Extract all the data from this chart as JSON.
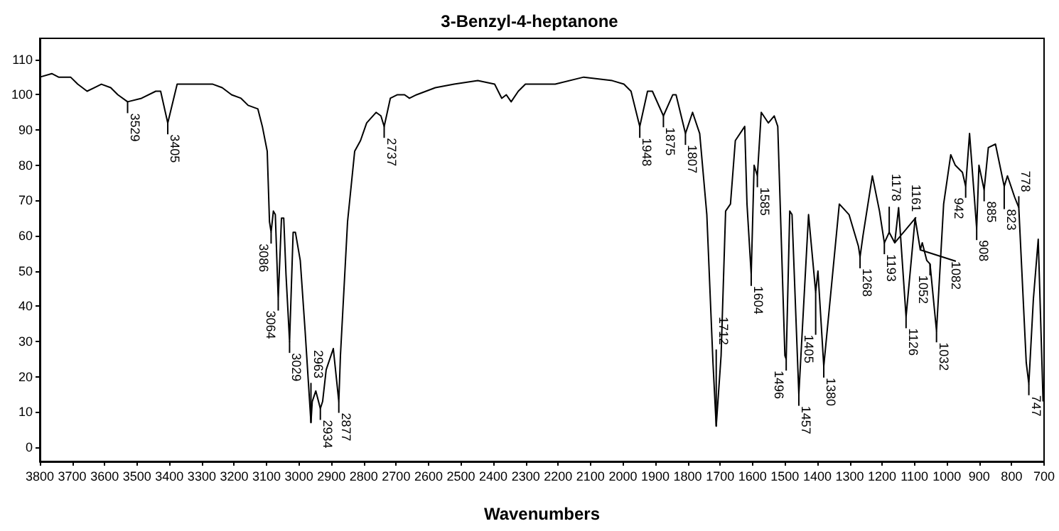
{
  "chart_data": {
    "type": "line",
    "title": "3-Benzyl-4-heptanone",
    "xlabel": "Wavenumbers",
    "xlim": [
      3800,
      700
    ],
    "xticks": [
      3800,
      3700,
      3600,
      3500,
      3400,
      3300,
      3200,
      3100,
      3000,
      2900,
      2800,
      2700,
      2600,
      2500,
      2400,
      2300,
      2200,
      2100,
      2000,
      1900,
      1800,
      1700,
      1600,
      1500,
      1400,
      1300,
      1200,
      1100,
      1000,
      900,
      800,
      700
    ],
    "ylim": [
      -4,
      116
    ],
    "yticks": [
      0,
      10,
      20,
      30,
      40,
      50,
      60,
      70,
      80,
      90,
      100,
      110
    ],
    "grid": false,
    "marker": "none",
    "line_style": "solid",
    "series": [
      {
        "color": "#000000",
        "x": [
          3800,
          3763,
          3742,
          3705,
          3683,
          3654,
          3632,
          3610,
          3581,
          3559,
          3529,
          3486,
          3442,
          3427,
          3405,
          3376,
          3361,
          3266,
          3237,
          3208,
          3179,
          3157,
          3127,
          3113,
          3098,
          3091,
          3086,
          3079,
          3073,
          3064,
          3054,
          3047,
          3040,
          3029,
          3018,
          3011,
          2996,
          2981,
          2963,
          2959,
          2948,
          2934,
          2927,
          2916,
          2894,
          2877,
          2872,
          2850,
          2828,
          2810,
          2791,
          2762,
          2747,
          2737,
          2718,
          2696,
          2674,
          2659,
          2637,
          2608,
          2579,
          2521,
          2448,
          2396,
          2374,
          2360,
          2345,
          2323,
          2301,
          2258,
          2209,
          2121,
          2033,
          1997,
          1975,
          1948,
          1924,
          1909,
          1875,
          1846,
          1836,
          1807,
          1785,
          1763,
          1741,
          1722,
          1712,
          1697,
          1683,
          1668,
          1653,
          1624,
          1617,
          1604,
          1595,
          1585,
          1573,
          1551,
          1533,
          1522,
          1500,
          1496,
          1485,
          1478,
          1457,
          1427,
          1405,
          1398,
          1380,
          1332,
          1302,
          1273,
          1268,
          1259,
          1230,
          1208,
          1193,
          1178,
          1161,
          1149,
          1126,
          1098,
          1082,
          1076,
          1062,
          1052,
          1032,
          1010,
          988,
          974,
          952,
          942,
          930,
          908,
          901,
          885,
          872,
          850,
          823,
          813,
          791,
          778,
          755,
          747,
          733,
          718,
          703
        ],
        "values": [
          105,
          106,
          105,
          105,
          103,
          101,
          102,
          103,
          102,
          100,
          98,
          99,
          101,
          101,
          92,
          103,
          103,
          103,
          102,
          100,
          99,
          97,
          96,
          91,
          84,
          64,
          61,
          67,
          66,
          42,
          65,
          65,
          49,
          30,
          61,
          61,
          53,
          33,
          7,
          13,
          16,
          11,
          13,
          22,
          28,
          13,
          26,
          64,
          84,
          87,
          92,
          95,
          94,
          91,
          99,
          100,
          100,
          99,
          100,
          101,
          102,
          103,
          104,
          103,
          99,
          100,
          98,
          101,
          103,
          103,
          103,
          105,
          104,
          103,
          101,
          91,
          101,
          101,
          94,
          100,
          100,
          89,
          95,
          89,
          66,
          24,
          6,
          26,
          67,
          69,
          87,
          91,
          69,
          49,
          80,
          77,
          95,
          92,
          94,
          91,
          26,
          25,
          67,
          66,
          15,
          66,
          44,
          50,
          23,
          69,
          66,
          57,
          54,
          60,
          77,
          67,
          58,
          61,
          58,
          68,
          37,
          65,
          56,
          58,
          53,
          52,
          33,
          69,
          83,
          80,
          78,
          74,
          89,
          62,
          80,
          73,
          85,
          86,
          74,
          77,
          71,
          68,
          24,
          18,
          42,
          59,
          13
        ]
      }
    ],
    "annotations": [
      {
        "text": "3529",
        "x": 3529,
        "y": 98
      },
      {
        "text": "3405",
        "x": 3405,
        "y": 92
      },
      {
        "text": "3086",
        "x": 3086,
        "y": 61
      },
      {
        "text": "3064",
        "x": 3064,
        "y": 42
      },
      {
        "text": "3029",
        "x": 3029,
        "y": 30
      },
      {
        "text": "2963",
        "x": 2963,
        "y": 7
      },
      {
        "text": "2934",
        "x": 2934,
        "y": 11
      },
      {
        "text": "2877",
        "x": 2877,
        "y": 13
      },
      {
        "text": "2737",
        "x": 2737,
        "y": 91
      },
      {
        "text": "1948",
        "x": 1948,
        "y": 91
      },
      {
        "text": "1875",
        "x": 1875,
        "y": 94
      },
      {
        "text": "1807",
        "x": 1807,
        "y": 89
      },
      {
        "text": "1712",
        "x": 1712,
        "y": 6
      },
      {
        "text": "1604",
        "x": 1604,
        "y": 49
      },
      {
        "text": "1585",
        "x": 1585,
        "y": 77
      },
      {
        "text": "1496",
        "x": 1496,
        "y": 25
      },
      {
        "text": "1457",
        "x": 1457,
        "y": 15
      },
      {
        "text": "1405",
        "x": 1405,
        "y": 44
      },
      {
        "text": "1380",
        "x": 1380,
        "y": 23
      },
      {
        "text": "1268",
        "x": 1268,
        "y": 54
      },
      {
        "text": "1193",
        "x": 1193,
        "y": 58
      },
      {
        "text": "1178",
        "x": 1178,
        "y": 61
      },
      {
        "text": "1161",
        "x": 1161,
        "y": 58
      },
      {
        "text": "1126",
        "x": 1126,
        "y": 37
      },
      {
        "text": "1082",
        "x": 1082,
        "y": 56
      },
      {
        "text": "1052",
        "x": 1052,
        "y": 52
      },
      {
        "text": "1032",
        "x": 1032,
        "y": 33
      },
      {
        "text": "942",
        "x": 942,
        "y": 74
      },
      {
        "text": "908",
        "x": 908,
        "y": 62
      },
      {
        "text": "885",
        "x": 885,
        "y": 73
      },
      {
        "text": "823",
        "x": 823,
        "y": 74
      },
      {
        "text": "778",
        "x": 778,
        "y": 68
      },
      {
        "text": "747",
        "x": 747,
        "y": 18
      }
    ]
  }
}
